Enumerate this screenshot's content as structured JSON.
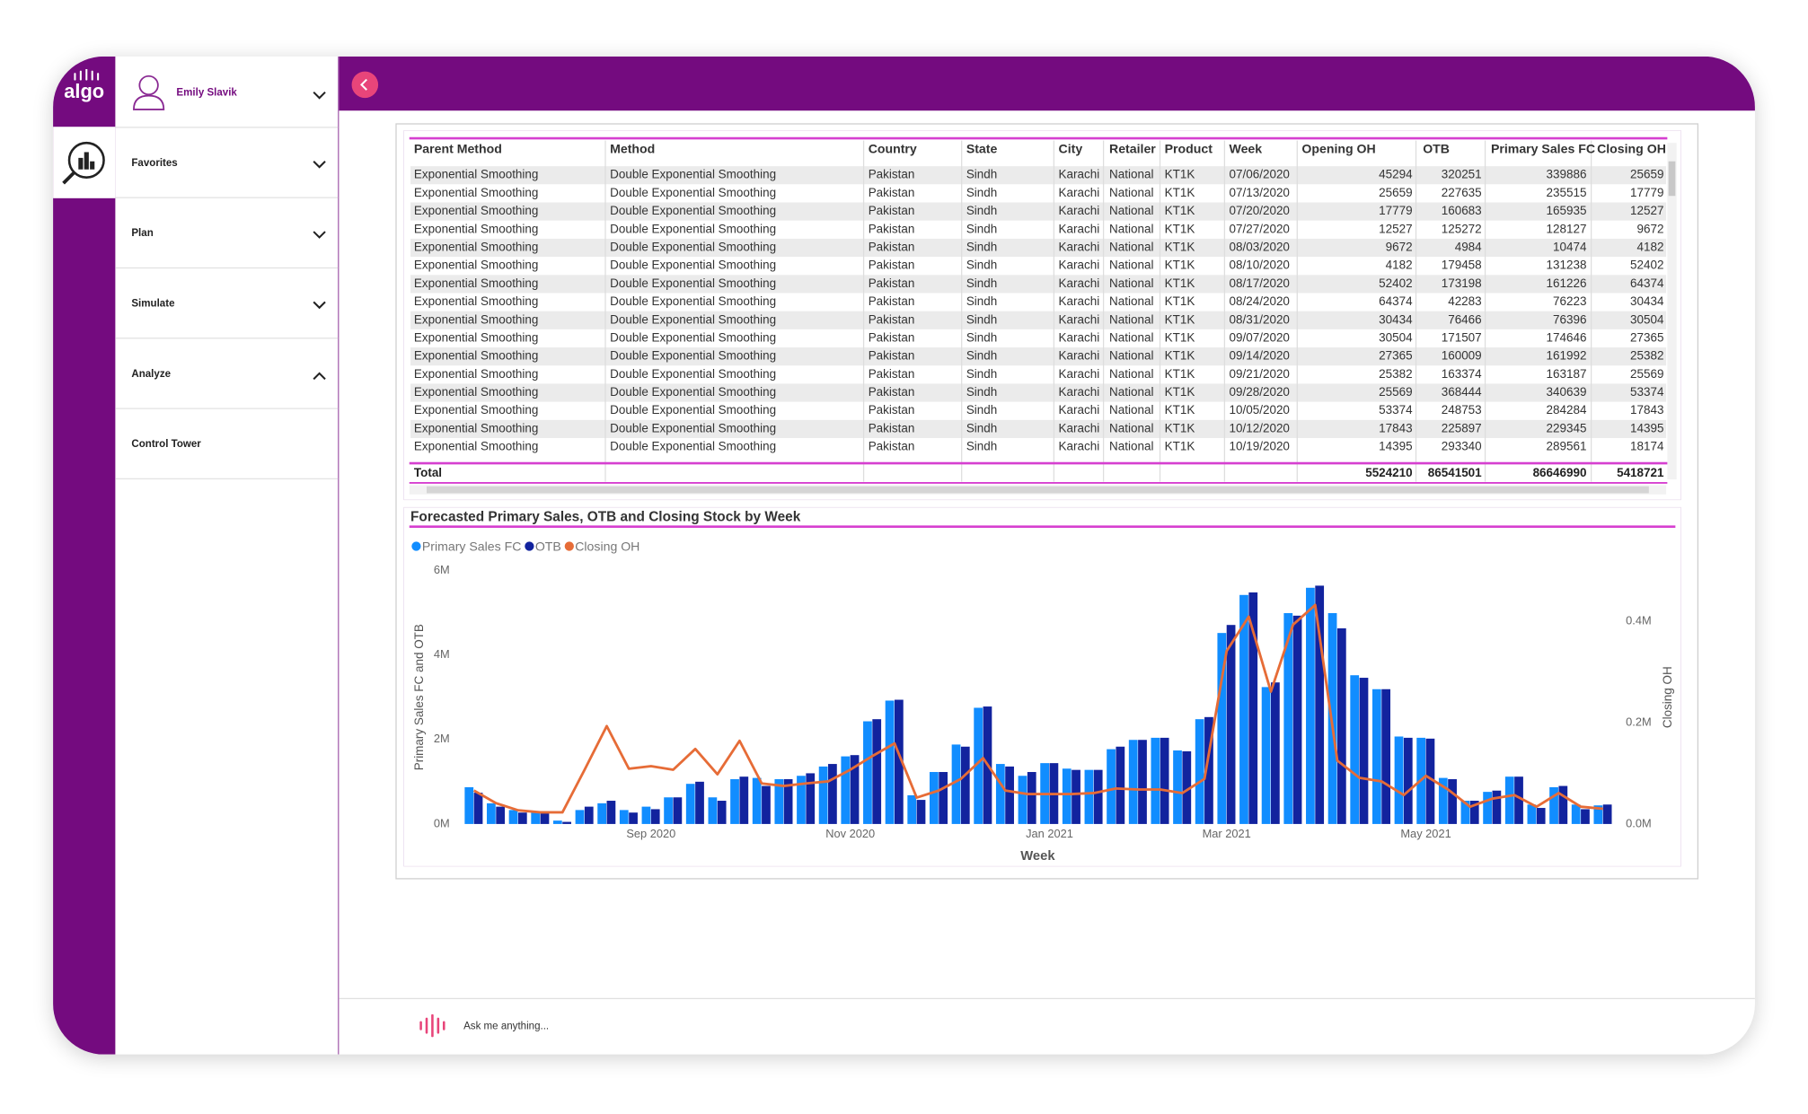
{
  "sidebar": {
    "logo": "algo"
  },
  "user": {
    "name": "Emily Slavik"
  },
  "nav": [
    "Favorites",
    "Plan",
    "Simulate",
    "Analyze",
    "Control Tower"
  ],
  "table": {
    "columns": [
      "Parent Method",
      "Method",
      "Country",
      "State",
      "City",
      "Retailer",
      "Product",
      "Week",
      "Opening OH",
      "OTB",
      "Primary Sales FC",
      "Closing OH"
    ],
    "rows": [
      [
        "Exponential Smoothing",
        "Double Exponential Smoothing",
        "Pakistan",
        "Sindh",
        "Karachi",
        "National",
        "KT1K",
        "07/06/2020",
        45294,
        320251,
        339886,
        25659
      ],
      [
        "Exponential Smoothing",
        "Double Exponential Smoothing",
        "Pakistan",
        "Sindh",
        "Karachi",
        "National",
        "KT1K",
        "07/13/2020",
        25659,
        227635,
        235515,
        17779
      ],
      [
        "Exponential Smoothing",
        "Double Exponential Smoothing",
        "Pakistan",
        "Sindh",
        "Karachi",
        "National",
        "KT1K",
        "07/20/2020",
        17779,
        160683,
        165935,
        12527
      ],
      [
        "Exponential Smoothing",
        "Double Exponential Smoothing",
        "Pakistan",
        "Sindh",
        "Karachi",
        "National",
        "KT1K",
        "07/27/2020",
        12527,
        125272,
        128127,
        9672
      ],
      [
        "Exponential Smoothing",
        "Double Exponential Smoothing",
        "Pakistan",
        "Sindh",
        "Karachi",
        "National",
        "KT1K",
        "08/03/2020",
        9672,
        4984,
        10474,
        4182
      ],
      [
        "Exponential Smoothing",
        "Double Exponential Smoothing",
        "Pakistan",
        "Sindh",
        "Karachi",
        "National",
        "KT1K",
        "08/10/2020",
        4182,
        179458,
        131238,
        52402
      ],
      [
        "Exponential Smoothing",
        "Double Exponential Smoothing",
        "Pakistan",
        "Sindh",
        "Karachi",
        "National",
        "KT1K",
        "08/17/2020",
        52402,
        173198,
        161226,
        64374
      ],
      [
        "Exponential Smoothing",
        "Double Exponential Smoothing",
        "Pakistan",
        "Sindh",
        "Karachi",
        "National",
        "KT1K",
        "08/24/2020",
        64374,
        42283,
        76223,
        30434
      ],
      [
        "Exponential Smoothing",
        "Double Exponential Smoothing",
        "Pakistan",
        "Sindh",
        "Karachi",
        "National",
        "KT1K",
        "08/31/2020",
        30434,
        76466,
        76396,
        30504
      ],
      [
        "Exponential Smoothing",
        "Double Exponential Smoothing",
        "Pakistan",
        "Sindh",
        "Karachi",
        "National",
        "KT1K",
        "09/07/2020",
        30504,
        171507,
        174646,
        27365
      ],
      [
        "Exponential Smoothing",
        "Double Exponential Smoothing",
        "Pakistan",
        "Sindh",
        "Karachi",
        "National",
        "KT1K",
        "09/14/2020",
        27365,
        160009,
        161992,
        25382
      ],
      [
        "Exponential Smoothing",
        "Double Exponential Smoothing",
        "Pakistan",
        "Sindh",
        "Karachi",
        "National",
        "KT1K",
        "09/21/2020",
        25382,
        163374,
        163187,
        25569
      ],
      [
        "Exponential Smoothing",
        "Double Exponential Smoothing",
        "Pakistan",
        "Sindh",
        "Karachi",
        "National",
        "KT1K",
        "09/28/2020",
        25569,
        368444,
        340639,
        53374
      ],
      [
        "Exponential Smoothing",
        "Double Exponential Smoothing",
        "Pakistan",
        "Sindh",
        "Karachi",
        "National",
        "KT1K",
        "10/05/2020",
        53374,
        248753,
        284284,
        17843
      ],
      [
        "Exponential Smoothing",
        "Double Exponential Smoothing",
        "Pakistan",
        "Sindh",
        "Karachi",
        "National",
        "KT1K",
        "10/12/2020",
        17843,
        225897,
        229345,
        14395
      ],
      [
        "Exponential Smoothing",
        "Double Exponential Smoothing",
        "Pakistan",
        "Sindh",
        "Karachi",
        "National",
        "KT1K",
        "10/19/2020",
        14395,
        293340,
        289561,
        18174
      ]
    ],
    "total": {
      "label": "Total",
      "values": [
        5524210,
        86541501,
        86646990,
        5418721
      ]
    }
  },
  "chart_data": {
    "type": "bar",
    "title": "Forecasted Primary Sales, OTB and Closing Stock by Week",
    "x_label": "Week",
    "y_label": "Primary Sales FC and OTB",
    "y2_label": "Closing OH",
    "categories": [
      null,
      null,
      null,
      null,
      null,
      null,
      null,
      null,
      "Sep 2020",
      null,
      null,
      null,
      null,
      null,
      null,
      null,
      null,
      "Nov 2020",
      null,
      null,
      null,
      null,
      null,
      null,
      null,
      null,
      "Jan 2021",
      null,
      null,
      null,
      null,
      null,
      null,
      null,
      "Mar 2021",
      null,
      null,
      null,
      null,
      null,
      null,
      null,
      null,
      "May 2021",
      null,
      null,
      null,
      null,
      null,
      null,
      null,
      null
    ],
    "series": [
      {
        "name": "Primary Sales FC",
        "color": "#118dff",
        "values": [
          870000,
          490000,
          330000,
          270000,
          80000,
          330000,
          490000,
          330000,
          410000,
          630000,
          950000,
          630000,
          1060000,
          1090000,
          1060000,
          1140000,
          1360000,
          1600000,
          2430000,
          2920000,
          680000,
          1230000,
          1880000,
          2750000,
          1420000,
          1140000,
          1440000,
          1310000,
          1280000,
          1770000,
          1990000,
          2040000,
          1740000,
          2480000,
          4520000,
          5420000,
          3240000,
          4990000,
          5590000,
          4990000,
          3520000,
          3190000,
          2070000,
          2040000,
          1090000,
          550000,
          760000,
          1120000,
          460000,
          870000,
          460000,
          440000
        ]
      },
      {
        "name": "OTB",
        "color": "#12239e",
        "values": [
          740000,
          410000,
          270000,
          270000,
          50000,
          410000,
          550000,
          270000,
          350000,
          630000,
          1000000,
          550000,
          1120000,
          900000,
          1060000,
          1200000,
          1420000,
          1630000,
          2480000,
          2940000,
          570000,
          1230000,
          1830000,
          2780000,
          1360000,
          1230000,
          1440000,
          1280000,
          1280000,
          1830000,
          1990000,
          2040000,
          1720000,
          2530000,
          4710000,
          5480000,
          3350000,
          4930000,
          5640000,
          4630000,
          3460000,
          3190000,
          2040000,
          2020000,
          1060000,
          550000,
          790000,
          1120000,
          380000,
          900000,
          350000,
          460000
        ]
      },
      {
        "name": "Closing OH",
        "color": "#e66c37",
        "type": "line",
        "axis": "y2",
        "values": [
          66000,
          41000,
          27000,
          23000,
          23000,
          107000,
          193000,
          109000,
          114000,
          107000,
          148000,
          98000,
          164000,
          80000,
          75000,
          80000,
          84000,
          107000,
          134000,
          159000,
          52000,
          66000,
          89000,
          130000,
          66000,
          59000,
          59000,
          59000,
          61000,
          70000,
          68000,
          68000,
          61000,
          89000,
          341000,
          409000,
          261000,
          393000,
          432000,
          125000,
          91000,
          84000,
          57000,
          95000,
          68000,
          34000,
          50000,
          57000,
          34000,
          61000,
          34000,
          30000
        ]
      }
    ],
    "ylim": [
      0,
      6000000
    ],
    "yticks": [
      {
        "value": 0,
        "label": "0M"
      },
      {
        "value": 2000000,
        "label": "2M"
      },
      {
        "value": 4000000,
        "label": "4M"
      },
      {
        "value": 6000000,
        "label": "6M"
      }
    ],
    "y2lim": [
      0,
      500000
    ],
    "y2ticks": [
      {
        "value": 0,
        "label": "0.0M"
      },
      {
        "value": 200000,
        "label": "0.2M"
      },
      {
        "value": 400000,
        "label": "0.4M"
      }
    ],
    "grid": false,
    "legend": "top-left"
  },
  "ask": {
    "placeholder": "Ask me anything..."
  }
}
